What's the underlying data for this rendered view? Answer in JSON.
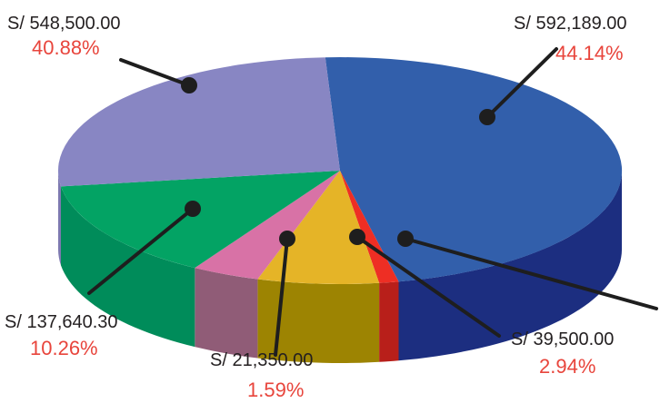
{
  "chart_data": {
    "type": "pie",
    "style": "3d",
    "legend": "none",
    "slices": [
      {
        "value_label": "S/ 592,189.00",
        "value": 592189.0,
        "percent": 44.14,
        "percent_label": "44.14%",
        "color": "#325fab",
        "side_color": "#1c2e80"
      },
      {
        "value_label": "",
        "value": null,
        "percent": null,
        "percent_label": "",
        "color": "#ee2e24",
        "side_color": "#b81f1a"
      },
      {
        "value_label": "S/ 39,500.00",
        "value": 39500.0,
        "percent": 2.94,
        "percent_label": "2.94%",
        "color": "#e5b427",
        "side_color": "#9d8402"
      },
      {
        "value_label": "S/ 21,350.00",
        "value": 21350.0,
        "percent": 1.59,
        "percent_label": "1.59%",
        "color": "#d872a6",
        "side_color": "#905c77"
      },
      {
        "value_label": "S/ 137,640.30",
        "value": 137640.3,
        "percent": 10.26,
        "percent_label": "10.26%",
        "color": "#03a364",
        "side_color": "#008c5a"
      },
      {
        "value_label": "S/ 548,500.00",
        "value": 548500.0,
        "percent": 40.88,
        "percent_label": "40.88%",
        "color": "#8886c3",
        "side_color": "#7d79b0"
      }
    ],
    "colors": {
      "leader": "#1e1e1e",
      "percent_text": "#e8453c",
      "value_text": "#231f20"
    }
  }
}
